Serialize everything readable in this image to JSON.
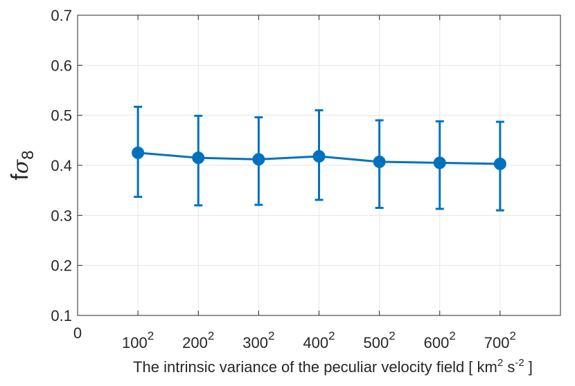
{
  "chart_data": {
    "type": "line",
    "categories": [
      "0",
      "100",
      "200",
      "300",
      "400",
      "500",
      "600",
      "700"
    ],
    "x_tick_labels": [
      {
        "base": "0",
        "exp": ""
      },
      {
        "base": "100",
        "exp": "2"
      },
      {
        "base": "200",
        "exp": "2"
      },
      {
        "base": "300",
        "exp": "2"
      },
      {
        "base": "400",
        "exp": "2"
      },
      {
        "base": "500",
        "exp": "2"
      },
      {
        "base": "600",
        "exp": "2"
      },
      {
        "base": "700",
        "exp": "2"
      }
    ],
    "series": [
      {
        "color": "#0072BD",
        "points": [
          {
            "x": 1,
            "y": 0.425,
            "lower": 0.337,
            "upper": 0.517
          },
          {
            "x": 2,
            "y": 0.415,
            "lower": 0.32,
            "upper": 0.499
          },
          {
            "x": 3,
            "y": 0.412,
            "lower": 0.321,
            "upper": 0.496
          },
          {
            "x": 4,
            "y": 0.418,
            "lower": 0.331,
            "upper": 0.51
          },
          {
            "x": 5,
            "y": 0.407,
            "lower": 0.315,
            "upper": 0.49
          },
          {
            "x": 6,
            "y": 0.405,
            "lower": 0.313,
            "upper": 0.488
          },
          {
            "x": 7,
            "y": 0.403,
            "lower": 0.31,
            "upper": 0.487
          }
        ]
      }
    ],
    "xlim": [
      0,
      8
    ],
    "ylim": [
      0.1,
      0.7
    ],
    "yticks": [
      0.1,
      0.2,
      0.3,
      0.4,
      0.5,
      0.6,
      0.7
    ],
    "ytick_labels": [
      "0.1",
      "0.2",
      "0.3",
      "0.4",
      "0.5",
      "0.6",
      "0.7"
    ],
    "xlabel": {
      "text": "The intrinsic variance of the peculiar velocity field  [ km",
      "sup1": "2",
      "mid": " s",
      "sup2": "-2",
      "end": " ]"
    },
    "ylabel": {
      "main": "f",
      "sigma": "σ",
      "sub": "8"
    },
    "grid": true
  }
}
